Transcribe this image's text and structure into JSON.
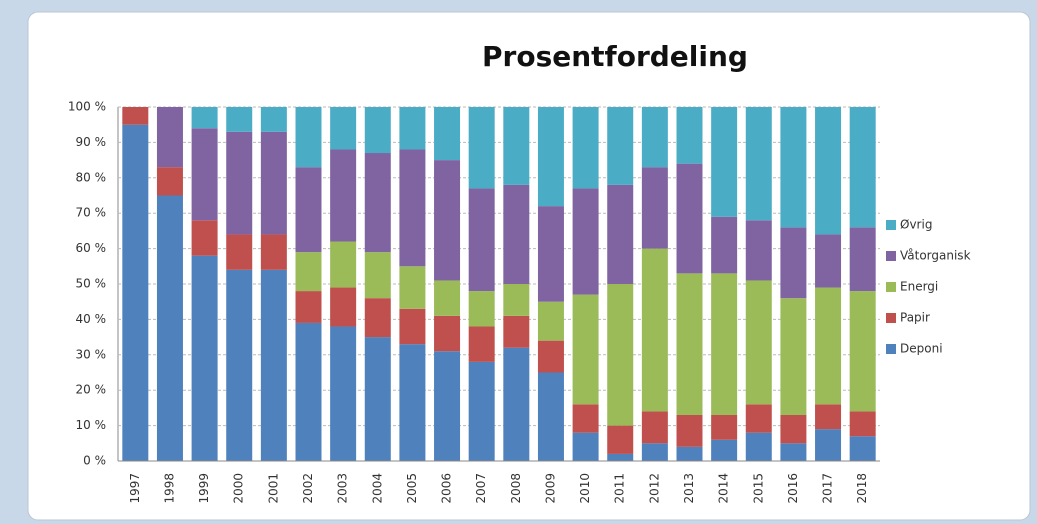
{
  "chart_data": {
    "type": "stacked_bar",
    "title": "Prosentfordeling",
    "categories": [
      "1997",
      "1998",
      "1999",
      "2000",
      "2001",
      "2002",
      "2003",
      "2004",
      "2005",
      "2006",
      "2007",
      "2008",
      "2009",
      "2010",
      "2011",
      "2012",
      "2013",
      "2014",
      "2015",
      "2016",
      "2017",
      "2018"
    ],
    "series": [
      {
        "name": "Deponi",
        "color": "#4f81bd",
        "values": [
          95,
          75,
          58,
          54,
          54,
          39,
          38,
          35,
          33,
          31,
          28,
          32,
          25,
          8,
          2,
          5,
          4,
          6,
          8,
          5,
          9,
          7
        ]
      },
      {
        "name": "Papir",
        "color": "#c0504d",
        "values": [
          5,
          8,
          10,
          10,
          10,
          9,
          11,
          11,
          10,
          10,
          10,
          9,
          9,
          8,
          8,
          9,
          9,
          7,
          8,
          8,
          7,
          7
        ]
      },
      {
        "name": "Energi",
        "color": "#9bbb59",
        "values": [
          0,
          0,
          0,
          0,
          0,
          11,
          13,
          13,
          12,
          10,
          10,
          9,
          11,
          31,
          40,
          46,
          40,
          40,
          35,
          33,
          33,
          34
        ]
      },
      {
        "name": "Våtorganisk",
        "color": "#8064a2",
        "values": [
          0,
          17,
          26,
          29,
          29,
          24,
          26,
          28,
          33,
          34,
          29,
          28,
          27,
          30,
          28,
          23,
          31,
          16,
          17,
          20,
          15,
          18
        ]
      },
      {
        "name": "Øvrig",
        "color": "#4bacc6",
        "values": [
          0,
          0,
          6,
          7,
          7,
          17,
          12,
          13,
          12,
          15,
          23,
          22,
          28,
          23,
          22,
          17,
          16,
          31,
          32,
          34,
          36,
          34
        ]
      }
    ],
    "ylim": [
      0,
      100
    ],
    "yticks": [
      {
        "value": 0,
        "label": "0 %"
      },
      {
        "value": 10,
        "label": "10 %"
      },
      {
        "value": 20,
        "label": "20 %"
      },
      {
        "value": 30,
        "label": "30 %"
      },
      {
        "value": 40,
        "label": "40 %"
      },
      {
        "value": 50,
        "label": "50 %"
      },
      {
        "value": 60,
        "label": "60 %"
      },
      {
        "value": 70,
        "label": "70 %"
      },
      {
        "value": 80,
        "label": "80 %"
      },
      {
        "value": 90,
        "label": "90 %"
      },
      {
        "value": 100,
        "label": "100 %"
      }
    ],
    "grid": true,
    "legend": "right"
  }
}
